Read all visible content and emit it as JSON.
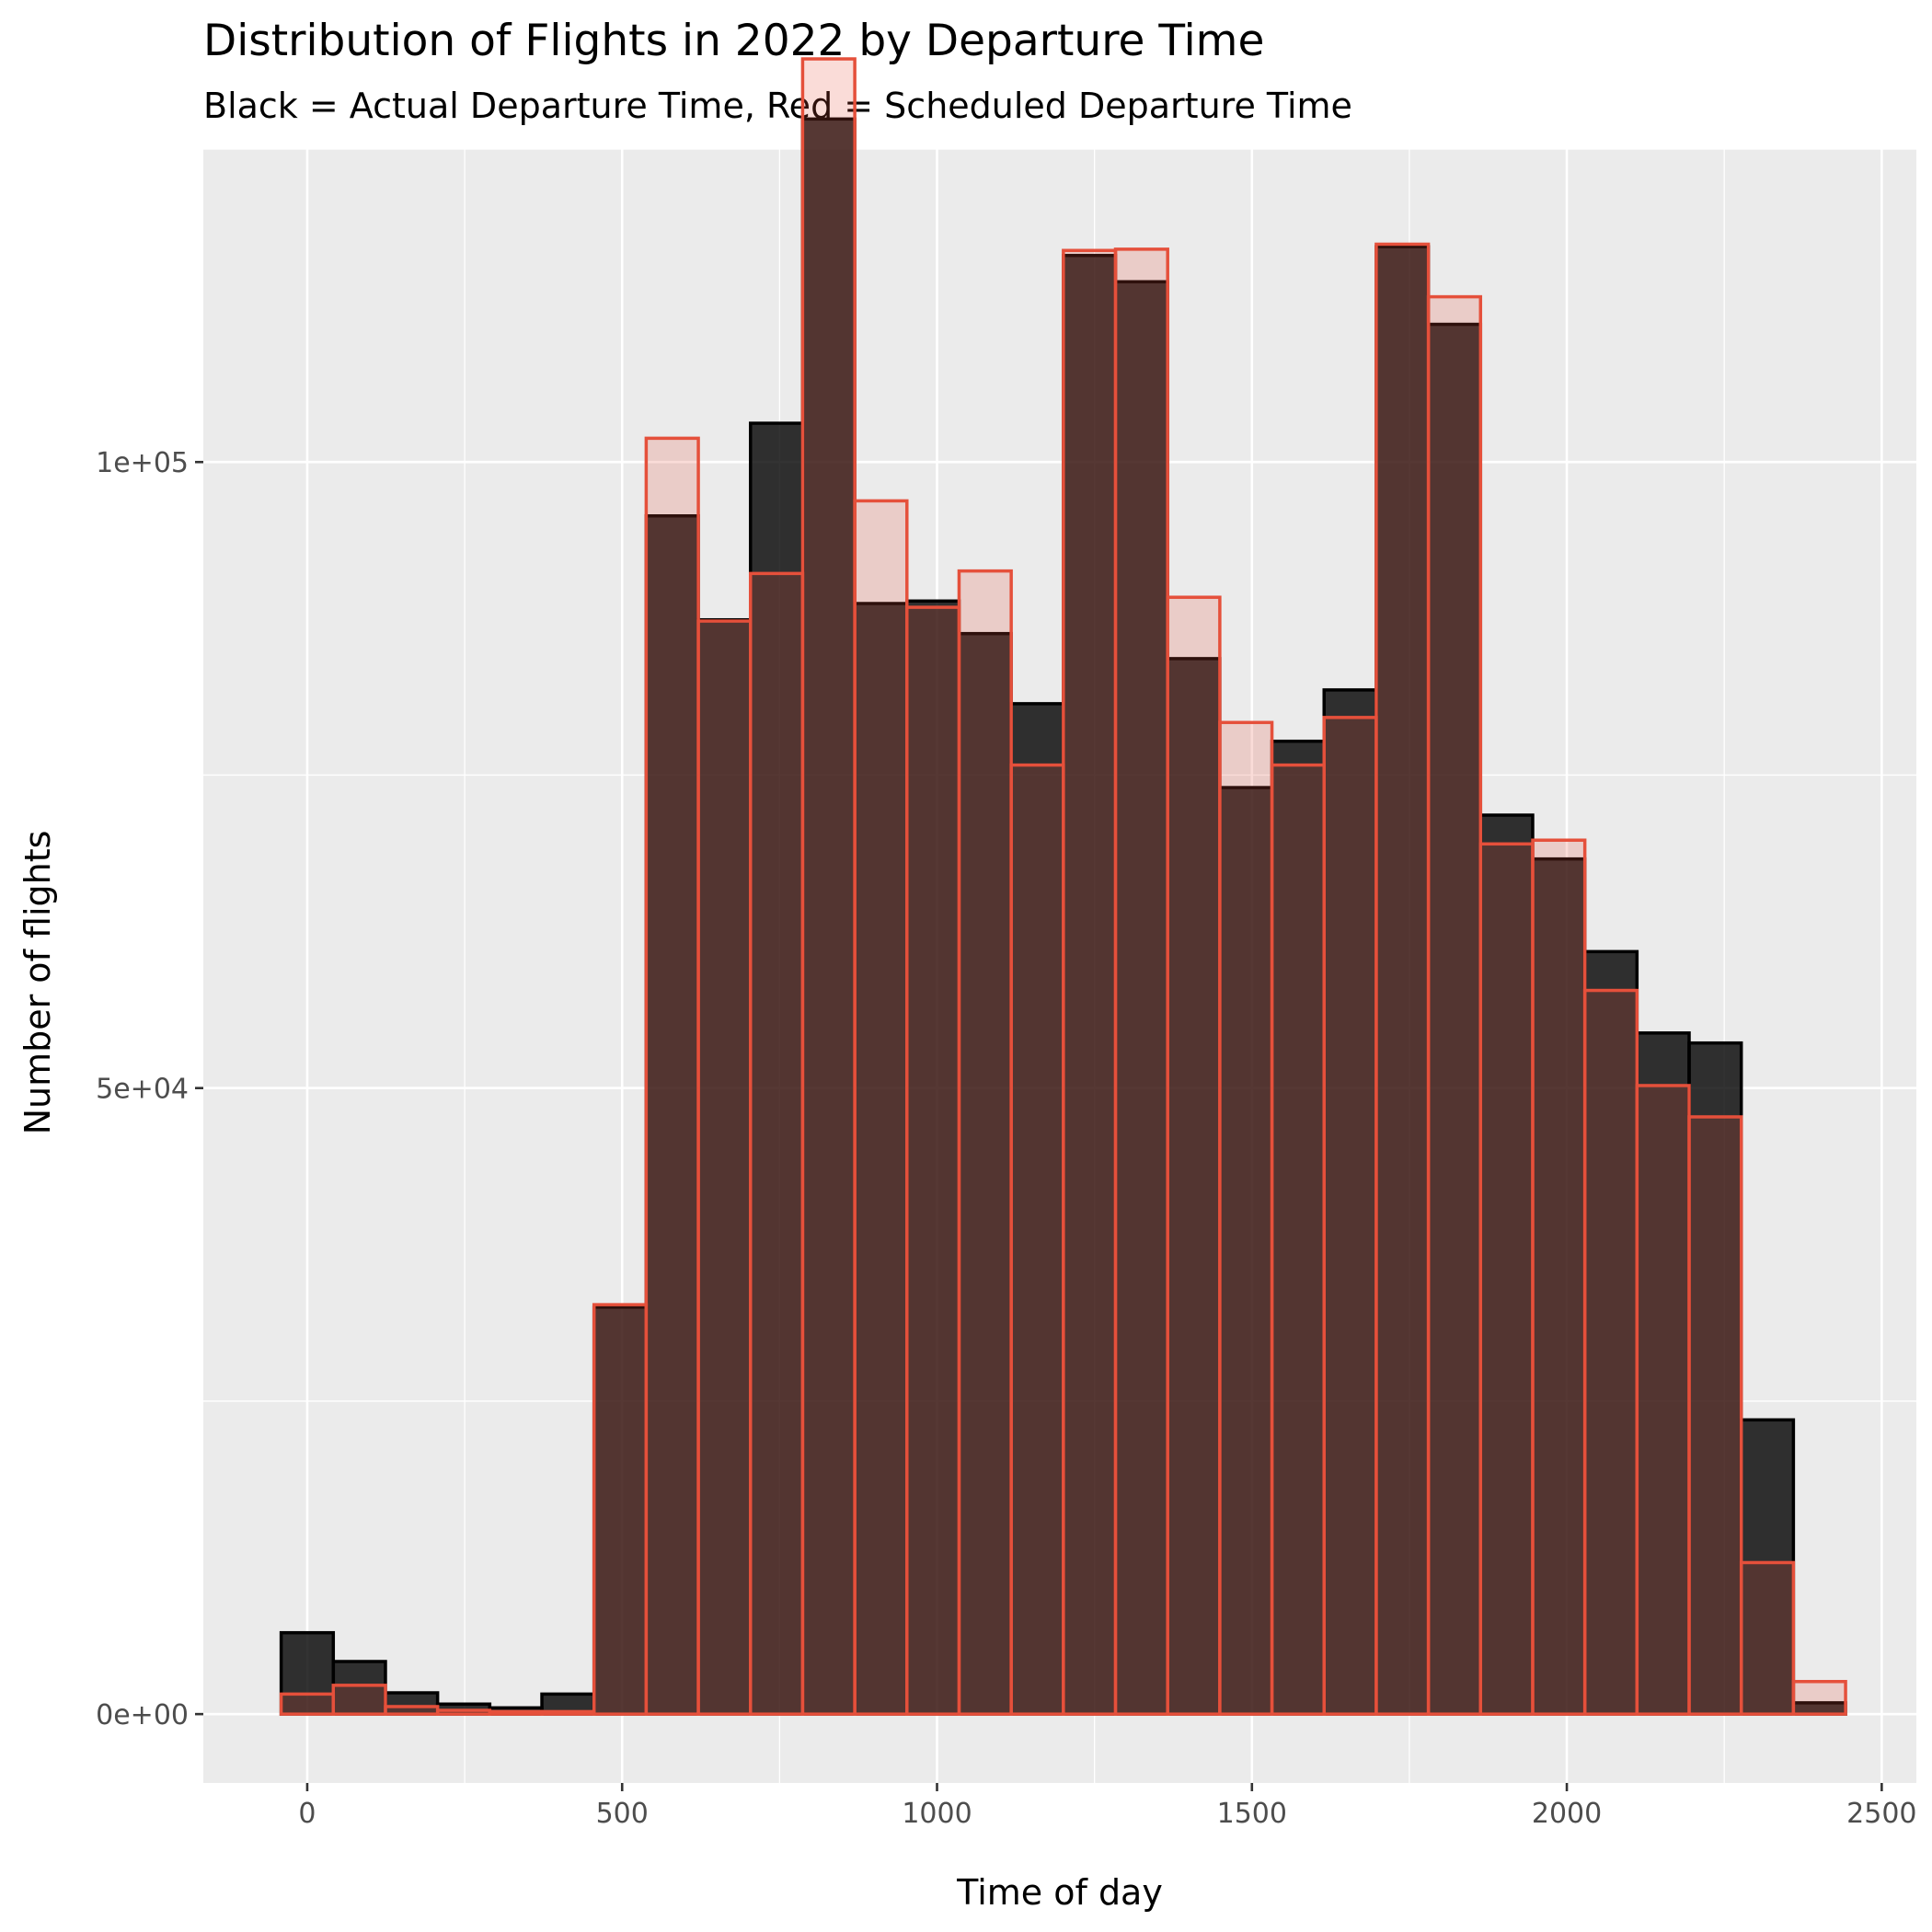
{
  "chart_data": {
    "type": "bar",
    "title": "Distribution of Flights in 2022 by Departure Time",
    "subtitle": "Black = Actual Departure Time, Red = Scheduled Departure Time",
    "xlabel": "Time of day",
    "ylabel": "Number of flights",
    "xlim": [
      -165,
      2555
    ],
    "ylim": [
      -5500,
      125000
    ],
    "x_ticks": [
      0,
      500,
      1000,
      1500,
      2000,
      2500
    ],
    "x_tick_labels": [
      "0",
      "500",
      "1000",
      "1500",
      "2000",
      "2500"
    ],
    "y_ticks": [
      0,
      50000,
      100000
    ],
    "y_tick_labels": [
      "0e+00",
      "5e+04",
      "1e+05"
    ],
    "bin_width": 82.8,
    "bin_centers": [
      0,
      82.8,
      165.6,
      248.4,
      331.2,
      414,
      496.8,
      579.6,
      662.4,
      745.2,
      828,
      910.8,
      993.6,
      1076.4,
      1159.2,
      1242,
      1324.8,
      1407.6,
      1490.4,
      1573.2,
      1656,
      1738.8,
      1821.6,
      1904.4,
      1987.2,
      2070,
      2152.8,
      2235.6,
      2318.4,
      2401.2
    ],
    "series": [
      {
        "name": "Actual Departure Time",
        "fill": "#000000",
        "fill_opacity": 0.8,
        "stroke": "#000000",
        "values": [
          6500,
          4200,
          1700,
          800,
          500,
          1600,
          32500,
          95700,
          87400,
          103100,
          127400,
          88700,
          88900,
          86300,
          80700,
          116500,
          114400,
          84300,
          74000,
          77700,
          81800,
          117200,
          111000,
          71800,
          68300,
          60900,
          54400,
          53600,
          23500,
          900
        ]
      },
      {
        "name": "Scheduled Departure Time",
        "fill": "#e5503b",
        "fill_opacity": 0.2,
        "stroke": "#e5503b",
        "values": [
          1600,
          2300,
          600,
          300,
          200,
          200,
          32700,
          101900,
          87300,
          91100,
          132200,
          96900,
          88400,
          91300,
          75800,
          116900,
          117000,
          89200,
          79200,
          75800,
          79600,
          117400,
          113200,
          69500,
          69800,
          57800,
          50200,
          47700,
          12100,
          2600
        ]
      }
    ],
    "grid": true,
    "legend": "none"
  }
}
